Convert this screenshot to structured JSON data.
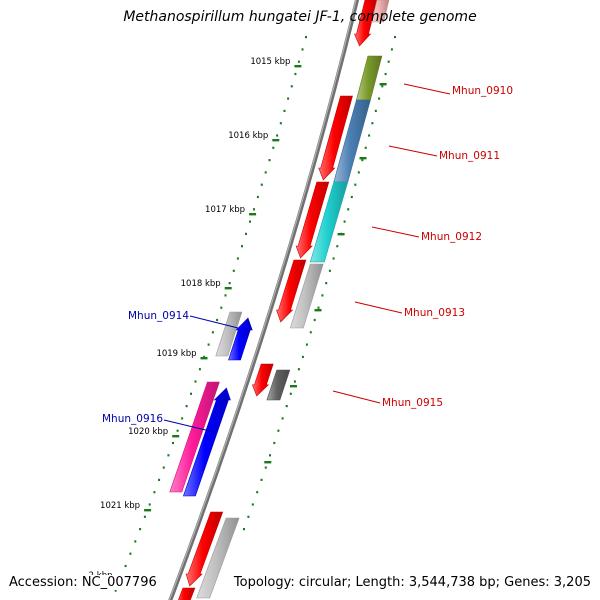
{
  "title": "Methanospirillum hungatei JF-1, complete genome",
  "footer": {
    "accession": "Accession: NC_007796",
    "summary": "Topology: circular; Length: 3,544,738 bp; Genes: 3,205"
  },
  "ticks": [
    {
      "label": "1015 kbp"
    },
    {
      "label": "1016 kbp"
    },
    {
      "label": "1017 kbp"
    },
    {
      "label": "1018 kbp"
    },
    {
      "label": "1019 kbp"
    },
    {
      "label": "1020 kbp"
    },
    {
      "label": "1021 kbp"
    },
    {
      "label": "2 kbp"
    }
  ],
  "genes": [
    {
      "label": "Mhun_0910",
      "strand": "forward"
    },
    {
      "label": "Mhun_0911",
      "strand": "forward"
    },
    {
      "label": "Mhun_0912",
      "strand": "forward"
    },
    {
      "label": "Mhun_0913",
      "strand": "forward"
    },
    {
      "label": "Mhun_0914",
      "strand": "reverse"
    },
    {
      "label": "Mhun_0915",
      "strand": "forward"
    },
    {
      "label": "Mhun_0916",
      "strand": "reverse"
    }
  ],
  "colors": {
    "forward_label": "#cc0000",
    "reverse_label": "#0000aa",
    "cds": "#ff0000",
    "tick": "#1a7a1a",
    "backbone": "#707070",
    "olive": "#7a9a2a",
    "steelblue": "#4a7fb5",
    "cyan": "#20d0d0",
    "gray": "#c0c0c0",
    "darkgray": "#606060",
    "blue": "#0000ff",
    "magenta": "#ff1a9a"
  }
}
